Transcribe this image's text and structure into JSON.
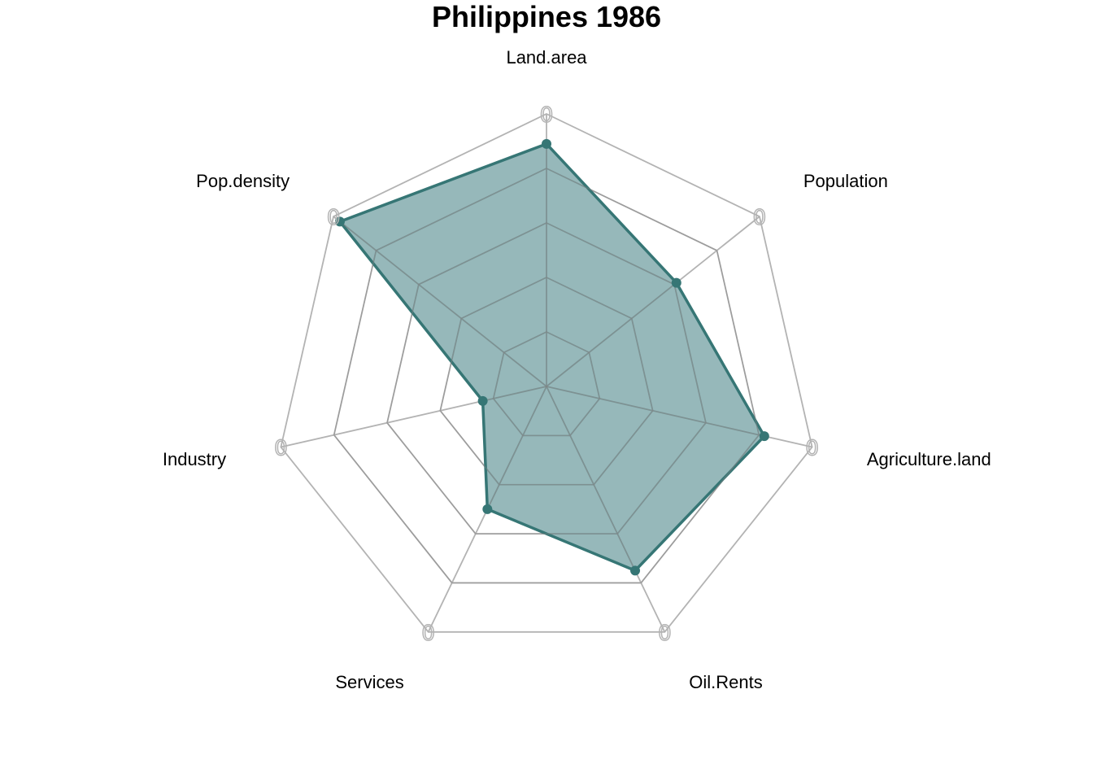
{
  "chart_data": {
    "type": "radar",
    "title": "Philippines 1986",
    "axes": [
      "Land.area",
      "Population",
      "Agriculture.land",
      "Oil.Rents",
      "Services",
      "Industry",
      "Pop.density"
    ],
    "series": [
      {
        "values": [
          0.89,
          0.61,
          0.82,
          0.75,
          0.5,
          0.24,
          0.97
        ]
      }
    ],
    "range": [
      0,
      1
    ],
    "grid_levels": 5,
    "axis_end_label": "0",
    "colors": {
      "line": "#367675",
      "fill": "#5f9396",
      "grid": "#b3b3b3",
      "inner_grid": "#808080"
    }
  }
}
